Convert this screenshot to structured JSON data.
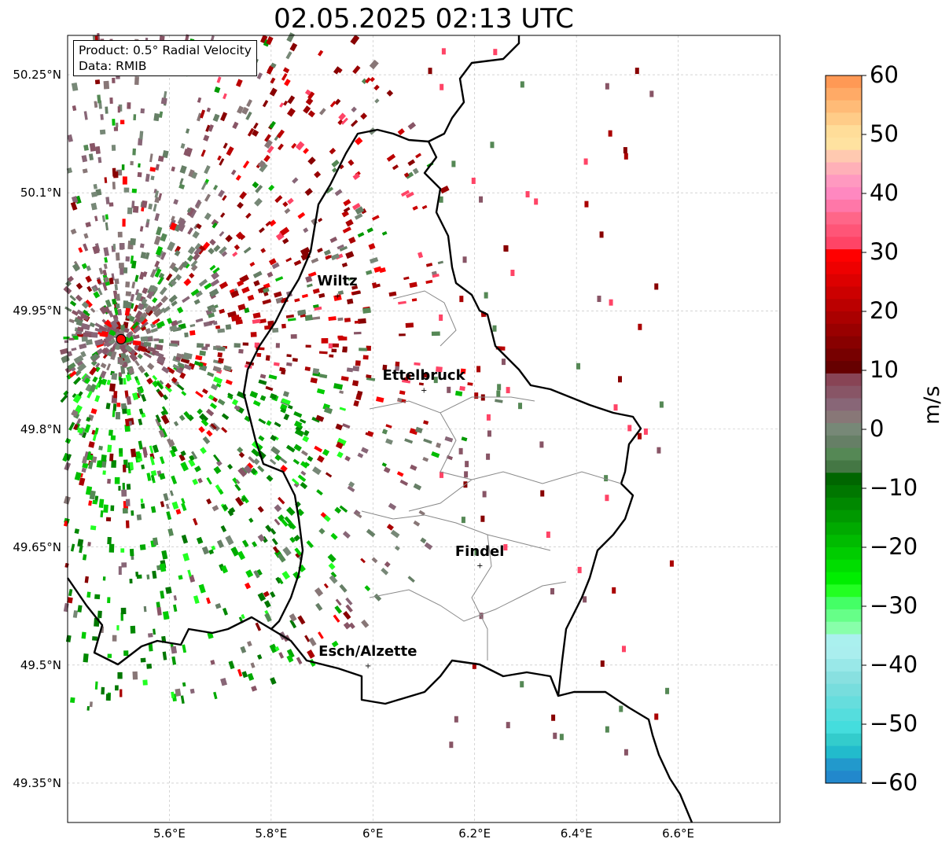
{
  "title": "02.05.2025 02:13 UTC",
  "info": {
    "product": "Product: 0.5° Radial Velocity",
    "data": "Data: RMIB"
  },
  "map": {
    "lon_range": [
      5.4,
      6.8
    ],
    "lat_range": [
      49.3,
      50.3
    ],
    "lat_ticks": [
      "50.25°N",
      "50.1°N",
      "49.95°N",
      "49.8°N",
      "49.65°N",
      "49.5°N",
      "49.35°N"
    ],
    "lon_ticks": [
      "5.6°E",
      "5.8°E",
      "6°E",
      "6.2°E",
      "6.4°E",
      "6.6°E"
    ],
    "radar_site": {
      "lon": 5.505,
      "lat": 49.914
    },
    "cities": [
      {
        "name": "Wiltz",
        "lon": 5.93,
        "lat": 49.97
      },
      {
        "name": "Ettelbruck",
        "lon": 6.1,
        "lat": 49.85
      },
      {
        "name": "Findel",
        "lon": 6.21,
        "lat": 49.627
      },
      {
        "name": "Esch/Alzette",
        "lon": 5.99,
        "lat": 49.5
      }
    ]
  },
  "colorbar": {
    "label": "m/s",
    "ticks": [
      "60",
      "50",
      "40",
      "30",
      "20",
      "10",
      "0",
      "−10",
      "−20",
      "−30",
      "−40",
      "−50",
      "−60"
    ],
    "range": [
      -60,
      60
    ],
    "colors_top_to_bottom": [
      "#ff9955",
      "#ffaa66",
      "#ffbb77",
      "#ffcc88",
      "#ffdd99",
      "#ffe2a0",
      "#ffc9b0",
      "#ffb0b8",
      "#ff99c0",
      "#ff88c0",
      "#ff77a8",
      "#ff6688",
      "#ff5577",
      "#ff4466",
      "#ff0000",
      "#ee0000",
      "#dd0000",
      "#cc0000",
      "#bb0000",
      "#aa0000",
      "#990000",
      "#880000",
      "#770000",
      "#660000",
      "#884455",
      "#885566",
      "#886677",
      "#887777",
      "#778877",
      "#667f66",
      "#558855",
      "#447744",
      "#006600",
      "#007700",
      "#008800",
      "#009900",
      "#00aa00",
      "#00bb00",
      "#00cc00",
      "#00dd00",
      "#00ee00",
      "#22ff22",
      "#44ff66",
      "#66ff88",
      "#88ffaa",
      "#aaf0ee",
      "#aaeeee",
      "#99e8e8",
      "#88e0e0",
      "#77dddd",
      "#66dddd",
      "#55dddd",
      "#44dddd",
      "#33cccc",
      "#22bbcc",
      "#2299cc",
      "#2288cc"
    ]
  }
}
